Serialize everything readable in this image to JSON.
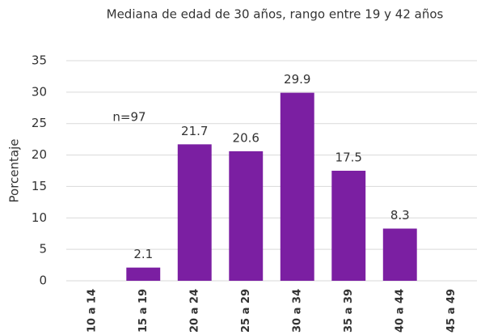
{
  "chart_data": {
    "type": "bar",
    "title": "Mediana de edad de 30 años,  rango entre 19 y 42 años",
    "ylabel": "Porcentaje",
    "annotation": "n=97",
    "categories": [
      "10 a 14",
      "15 a 19",
      "20 a 24",
      "25 a 29",
      "30 a 34",
      "35 a 39",
      "40 a 44",
      "45 a 49"
    ],
    "values": [
      null,
      2.1,
      21.7,
      20.6,
      29.9,
      17.5,
      8.3,
      null
    ],
    "color": "#7b1fa2",
    "ylim": [
      0,
      35
    ],
    "yticks": [
      0,
      5,
      10,
      15,
      20,
      25,
      30,
      35
    ],
    "grid": true
  }
}
